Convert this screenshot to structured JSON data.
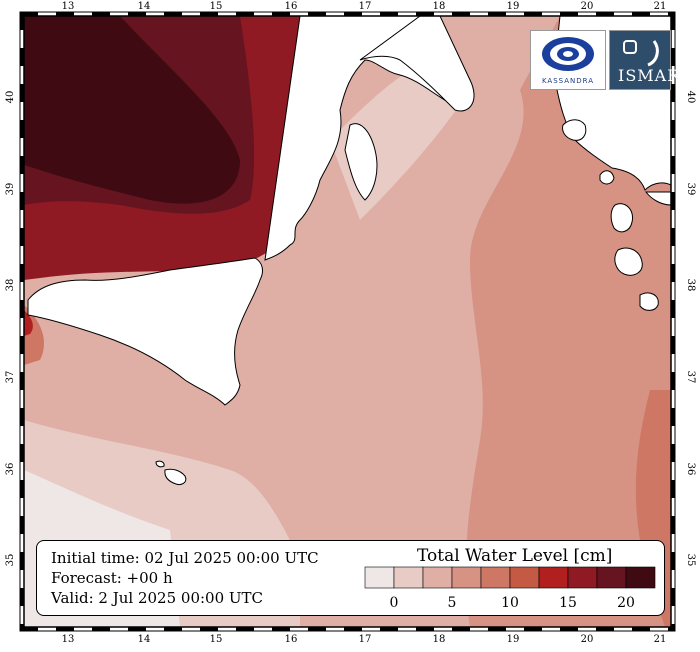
{
  "map": {
    "lon_ticks": [
      "13",
      "14",
      "15",
      "16",
      "17",
      "18",
      "19",
      "20",
      "21"
    ],
    "lat_ticks": [
      "35",
      "36",
      "37",
      "38",
      "39",
      "40"
    ],
    "colors": {
      "land": "#ffffff",
      "sea_levels": [
        "#efe6e6",
        "#e9cbc6",
        "#dfaea5",
        "#d69283",
        "#cf7765",
        "#c55a44",
        "#b21f1f",
        "#8f1a24",
        "#661420",
        "#3f0a12"
      ],
      "coast": "#000000"
    }
  },
  "info": {
    "initial_time": "Initial time: 02 Jul 2025 00:00 UTC",
    "forecast": "Forecast: +00 h",
    "valid": "Valid:  2 Jul 2025 00:00 UTC"
  },
  "legend": {
    "title": "Total Water Level [cm]",
    "labels": [
      "0",
      "5",
      "10",
      "15",
      "20"
    ]
  },
  "logos": {
    "kassandra": "KASSANDRA",
    "ismar": "ISMAR"
  }
}
